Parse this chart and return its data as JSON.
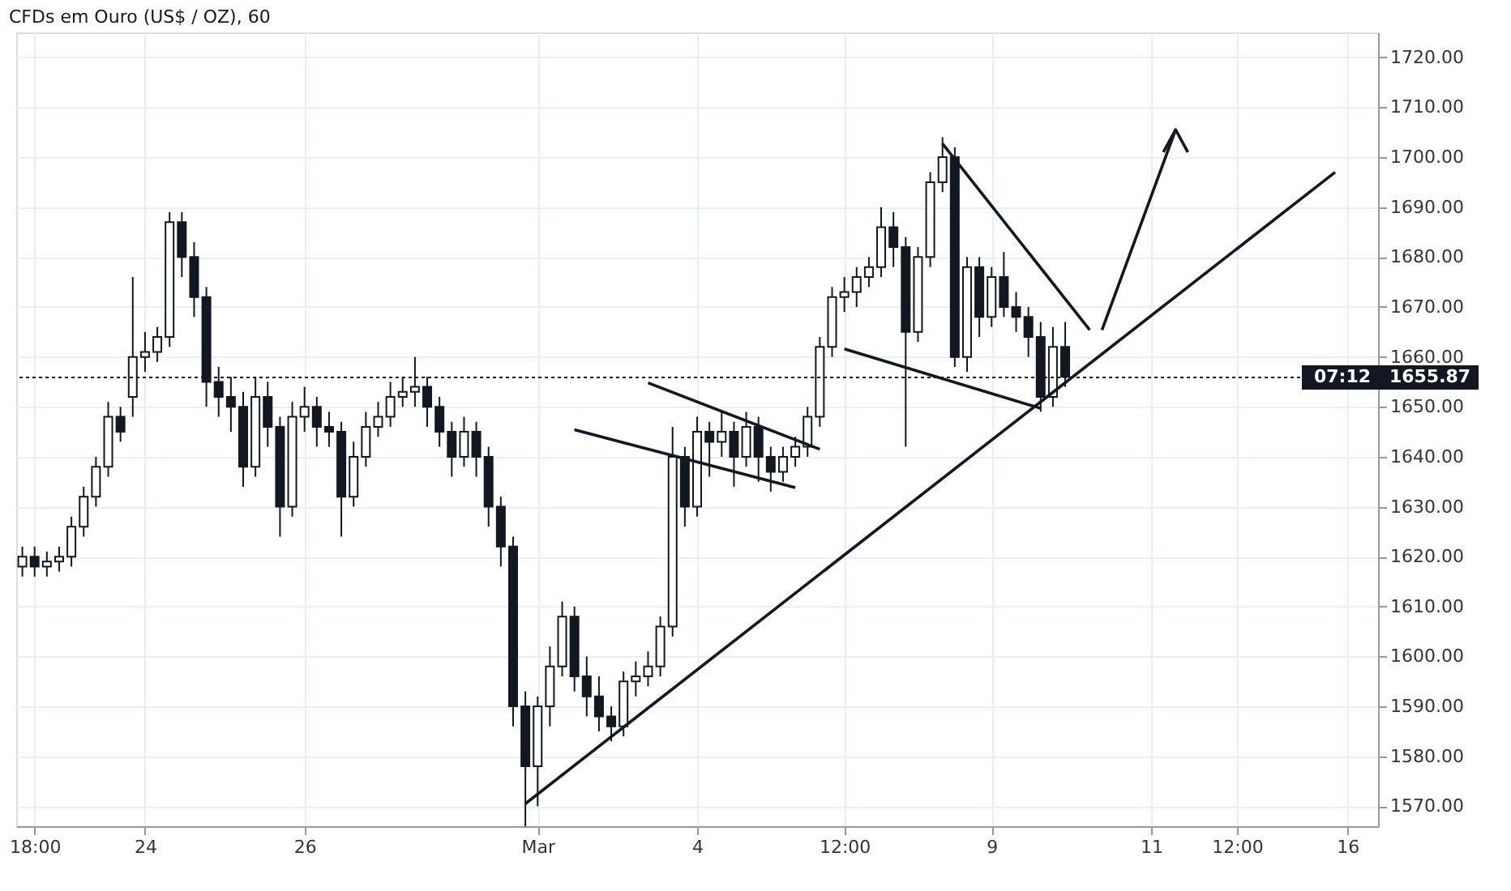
{
  "chart_data": {
    "type": "candlestick",
    "title": "CFDs em Ouro (US$ / OZ), 60",
    "color": "#131722",
    "categories": [
      null,
      "18:00",
      null,
      null,
      null,
      null,
      null,
      null,
      null,
      null,
      "24",
      null,
      null,
      null,
      null,
      null,
      null,
      null,
      null,
      null,
      null,
      null,
      null,
      "26",
      null,
      null,
      null,
      null,
      null,
      null,
      null,
      null,
      null,
      null,
      null,
      null,
      null,
      null,
      null,
      null,
      null,
      null,
      "Mar",
      null,
      null,
      null,
      null,
      null,
      null,
      null,
      null,
      null,
      null,
      null,
      null,
      "4",
      null,
      null,
      null,
      null,
      null,
      null,
      null,
      null,
      null,
      null,
      null,
      "12:00",
      null,
      null,
      null,
      null,
      null,
      null,
      null,
      null,
      null,
      null,
      null,
      "9",
      null,
      null,
      null,
      null,
      null,
      null,
      null,
      null,
      null,
      null,
      null,
      null,
      "11",
      null,
      null,
      null,
      null,
      null,
      null,
      "12:00",
      null,
      null,
      null,
      null,
      null,
      null,
      null,
      null,
      "16",
      null,
      null
    ],
    "ohlc": [
      [
        1618,
        1622,
        1616,
        1620
      ],
      [
        1620,
        1622,
        1616,
        1618
      ],
      [
        1618,
        1621,
        1616,
        1619
      ],
      [
        1619,
        1622,
        1617,
        1620
      ],
      [
        1620,
        1628,
        1618,
        1626
      ],
      [
        1626,
        1634,
        1624,
        1632
      ],
      [
        1632,
        1640,
        1630,
        1638
      ],
      [
        1638,
        1651,
        1636,
        1648
      ],
      [
        1648,
        1650,
        1643,
        1645
      ],
      [
        1652,
        1676,
        1648,
        1660
      ],
      [
        1660,
        1665,
        1657,
        1661
      ],
      [
        1661,
        1666,
        1659,
        1664
      ],
      [
        1664,
        1689,
        1662,
        1687
      ],
      [
        1687,
        1689,
        1676,
        1680
      ],
      [
        1680,
        1683,
        1668,
        1672
      ],
      [
        1672,
        1674,
        1650,
        1655
      ],
      [
        1655,
        1658,
        1648,
        1652
      ],
      [
        1652,
        1656,
        1645,
        1650
      ],
      [
        1650,
        1653,
        1634,
        1638
      ],
      [
        1638,
        1656,
        1636,
        1652
      ],
      [
        1652,
        1655,
        1642,
        1646
      ],
      [
        1646,
        1648,
        1624,
        1630
      ],
      [
        1630,
        1651,
        1628,
        1648
      ],
      [
        1648,
        1654,
        1645,
        1650
      ],
      [
        1650,
        1652,
        1642,
        1646
      ],
      [
        1646,
        1649,
        1642,
        1645
      ],
      [
        1645,
        1647,
        1624,
        1632
      ],
      [
        1632,
        1643,
        1630,
        1640
      ],
      [
        1640,
        1649,
        1638,
        1646
      ],
      [
        1646,
        1651,
        1644,
        1648
      ],
      [
        1648,
        1655,
        1646,
        1652
      ],
      [
        1652,
        1656,
        1650,
        1653
      ],
      [
        1653,
        1660,
        1650,
        1654
      ],
      [
        1654,
        1656,
        1646,
        1650
      ],
      [
        1650,
        1652,
        1642,
        1645
      ],
      [
        1645,
        1647,
        1636,
        1640
      ],
      [
        1640,
        1648,
        1638,
        1645
      ],
      [
        1645,
        1647,
        1636,
        1640
      ],
      [
        1640,
        1642,
        1626,
        1630
      ],
      [
        1630,
        1632,
        1618,
        1622
      ],
      [
        1622,
        1624,
        1586,
        1590
      ],
      [
        1590,
        1593,
        1566,
        1578
      ],
      [
        1578,
        1592,
        1570,
        1590
      ],
      [
        1590,
        1602,
        1586,
        1598
      ],
      [
        1598,
        1611,
        1596,
        1608
      ],
      [
        1608,
        1610,
        1593,
        1596
      ],
      [
        1596,
        1600,
        1588,
        1592
      ],
      [
        1592,
        1596,
        1585,
        1588
      ],
      [
        1588,
        1590,
        1583,
        1586
      ],
      [
        1586,
        1597,
        1584,
        1595
      ],
      [
        1595,
        1599,
        1592,
        1596
      ],
      [
        1596,
        1601,
        1594,
        1598
      ],
      [
        1598,
        1608,
        1596,
        1606
      ],
      [
        1606,
        1646,
        1604,
        1640
      ],
      [
        1640,
        1642,
        1626,
        1630
      ],
      [
        1630,
        1648,
        1628,
        1645
      ],
      [
        1645,
        1647,
        1636,
        1643
      ],
      [
        1643,
        1649,
        1640,
        1645
      ],
      [
        1645,
        1647,
        1634,
        1640
      ],
      [
        1640,
        1649,
        1638,
        1646
      ],
      [
        1646,
        1648,
        1635,
        1640
      ],
      [
        1640,
        1642,
        1633,
        1637
      ],
      [
        1637,
        1642,
        1635,
        1640
      ],
      [
        1640,
        1644,
        1638,
        1642
      ],
      [
        1642,
        1650,
        1640,
        1648
      ],
      [
        1648,
        1664,
        1646,
        1662
      ],
      [
        1662,
        1674,
        1660,
        1672
      ],
      [
        1672,
        1676,
        1669,
        1673
      ],
      [
        1673,
        1678,
        1670,
        1676
      ],
      [
        1676,
        1680,
        1674,
        1678
      ],
      [
        1678,
        1690,
        1676,
        1686
      ],
      [
        1686,
        1689,
        1678,
        1682
      ],
      [
        1682,
        1684,
        1642,
        1665
      ],
      [
        1665,
        1682,
        1663,
        1680
      ],
      [
        1680,
        1697,
        1678,
        1695
      ],
      [
        1695,
        1704,
        1693,
        1700
      ],
      [
        1700,
        1702,
        1658,
        1660
      ],
      [
        1660,
        1680,
        1657,
        1678
      ],
      [
        1678,
        1680,
        1664,
        1668
      ],
      [
        1668,
        1678,
        1666,
        1676
      ],
      [
        1676,
        1681,
        1668,
        1670
      ],
      [
        1670,
        1673,
        1665,
        1668
      ],
      [
        1668,
        1670,
        1660,
        1664
      ],
      [
        1664,
        1667,
        1649,
        1652
      ],
      [
        1652,
        1666,
        1650,
        1662
      ],
      [
        1662,
        1667,
        1654,
        1656
      ],
      null,
      null,
      null,
      null,
      null,
      null,
      null,
      null,
      null,
      null,
      null,
      null,
      null,
      null,
      null,
      null,
      null,
      null,
      null,
      null,
      null,
      null,
      null,
      null,
      null
    ],
    "series": [
      {
        "type": "line",
        "color": "#131722",
        "values": [
          null,
          null,
          null,
          null,
          null,
          null,
          null,
          null,
          null,
          null,
          null,
          null,
          null,
          null,
          null,
          null,
          null,
          null,
          null,
          null,
          null,
          null,
          null,
          null,
          null,
          null,
          null,
          null,
          null,
          null,
          null,
          null,
          null,
          null,
          null,
          null,
          null,
          null,
          null,
          null,
          null,
          1570.5,
          null,
          null,
          null,
          null,
          null,
          null,
          null,
          null,
          null,
          null,
          null,
          null,
          null,
          null,
          null,
          null,
          null,
          null,
          null,
          null,
          null,
          null,
          null,
          null,
          null,
          null,
          null,
          null,
          null,
          null,
          null,
          null,
          null,
          null,
          null,
          null,
          null,
          null,
          null,
          null,
          null,
          null,
          null,
          null,
          null,
          null,
          null,
          null,
          null,
          null,
          null,
          null,
          null,
          null,
          null,
          null,
          null,
          null,
          null,
          null,
          null,
          null,
          null,
          null,
          null,
          1697,
          null,
          null,
          null
        ]
      },
      {
        "type": "line",
        "color": "#131722",
        "values": [
          null,
          null,
          null,
          null,
          null,
          null,
          null,
          null,
          null,
          null,
          null,
          null,
          null,
          null,
          null,
          null,
          null,
          null,
          null,
          null,
          null,
          null,
          null,
          null,
          null,
          null,
          null,
          null,
          null,
          null,
          null,
          null,
          null,
          null,
          null,
          null,
          null,
          null,
          null,
          null,
          null,
          null,
          null,
          null,
          null,
          null,
          null,
          null,
          null,
          null,
          null,
          1654.8,
          null,
          null,
          null,
          null,
          null,
          null,
          null,
          null,
          null,
          null,
          null,
          null,
          null,
          1641.5,
          null,
          null,
          null,
          null,
          null,
          null,
          null,
          null,
          null,
          null,
          null,
          null,
          null,
          null,
          null,
          null,
          null,
          null,
          null,
          null,
          null,
          null,
          null,
          null,
          null,
          null,
          null,
          null,
          null,
          null,
          null,
          null,
          null,
          null,
          null,
          null,
          null,
          null,
          null,
          null,
          null,
          null,
          null,
          null,
          null
        ]
      },
      {
        "type": "line",
        "color": "#131722",
        "values": [
          null,
          null,
          null,
          null,
          null,
          null,
          null,
          null,
          null,
          null,
          null,
          null,
          null,
          null,
          null,
          null,
          null,
          null,
          null,
          null,
          null,
          null,
          null,
          null,
          null,
          null,
          null,
          null,
          null,
          null,
          null,
          null,
          null,
          null,
          null,
          null,
          null,
          null,
          null,
          null,
          null,
          null,
          null,
          null,
          null,
          1645.4,
          null,
          null,
          null,
          null,
          null,
          null,
          null,
          null,
          null,
          null,
          null,
          null,
          null,
          null,
          null,
          null,
          null,
          1633.8,
          null,
          null,
          null,
          null,
          null,
          null,
          null,
          null,
          null,
          null,
          null,
          null,
          null,
          null,
          null,
          null,
          null,
          null,
          null,
          null,
          null,
          null,
          null,
          null,
          null,
          null,
          null,
          null,
          null,
          null,
          null,
          null,
          null,
          null,
          null,
          null,
          null,
          null,
          null,
          null,
          null,
          null,
          null,
          null,
          null,
          null,
          null
        ]
      },
      {
        "type": "line",
        "color": "#131722",
        "values": [
          null,
          null,
          null,
          null,
          null,
          null,
          null,
          null,
          null,
          null,
          null,
          null,
          null,
          null,
          null,
          null,
          null,
          null,
          null,
          null,
          null,
          null,
          null,
          null,
          null,
          null,
          null,
          null,
          null,
          null,
          null,
          null,
          null,
          null,
          null,
          null,
          null,
          null,
          null,
          null,
          null,
          null,
          null,
          null,
          null,
          null,
          null,
          null,
          null,
          null,
          null,
          null,
          null,
          null,
          null,
          null,
          null,
          null,
          null,
          null,
          null,
          null,
          null,
          null,
          null,
          null,
          null,
          null,
          null,
          null,
          null,
          null,
          null,
          null,
          null,
          1702.7,
          null,
          null,
          null,
          null,
          null,
          null,
          null,
          null,
          null,
          null,
          null,
          1665.4,
          null,
          null,
          null,
          null,
          null,
          null,
          null,
          null,
          null,
          null,
          null,
          null,
          null,
          null,
          null,
          null,
          null,
          null,
          null,
          null,
          null,
          null,
          null
        ]
      },
      {
        "type": "line",
        "color": "#131722",
        "values": [
          null,
          null,
          null,
          null,
          null,
          null,
          null,
          null,
          null,
          null,
          null,
          null,
          null,
          null,
          null,
          null,
          null,
          null,
          null,
          null,
          null,
          null,
          null,
          null,
          null,
          null,
          null,
          null,
          null,
          null,
          null,
          null,
          null,
          null,
          null,
          null,
          null,
          null,
          null,
          null,
          null,
          null,
          null,
          null,
          null,
          null,
          null,
          null,
          null,
          null,
          null,
          null,
          null,
          null,
          null,
          null,
          null,
          null,
          null,
          null,
          null,
          null,
          null,
          null,
          null,
          null,
          null,
          1661.6,
          null,
          null,
          null,
          null,
          null,
          null,
          null,
          null,
          null,
          null,
          null,
          null,
          null,
          null,
          null,
          1649.7,
          null,
          null,
          null,
          null,
          null,
          null,
          null,
          null,
          null,
          null,
          null,
          null,
          null,
          null,
          null,
          null,
          null,
          null,
          null,
          null,
          null,
          null,
          null,
          null,
          null,
          null,
          null
        ]
      },
      {
        "type": "line",
        "color": "#131722",
        "values": [
          null,
          null,
          null,
          null,
          null,
          null,
          null,
          null,
          null,
          null,
          null,
          null,
          null,
          null,
          null,
          null,
          null,
          null,
          null,
          null,
          null,
          null,
          null,
          null,
          null,
          null,
          null,
          null,
          null,
          null,
          null,
          null,
          null,
          null,
          null,
          null,
          null,
          null,
          null,
          null,
          null,
          null,
          null,
          null,
          null,
          null,
          null,
          null,
          null,
          null,
          null,
          null,
          null,
          null,
          null,
          null,
          null,
          null,
          null,
          null,
          null,
          null,
          null,
          null,
          null,
          null,
          null,
          null,
          null,
          null,
          null,
          null,
          null,
          null,
          null,
          null,
          null,
          null,
          null,
          null,
          null,
          null,
          null,
          null,
          null,
          null,
          null,
          null,
          1665.4,
          null,
          null,
          null,
          null,
          null,
          1705.5,
          null,
          null,
          null,
          null,
          null,
          null,
          null,
          null,
          null,
          null,
          null,
          null,
          null,
          null,
          null,
          null
        ]
      },
      {
        "type": "line",
        "color": "#131722",
        "values": [
          null,
          null,
          null,
          null,
          null,
          null,
          null,
          null,
          null,
          null,
          null,
          null,
          null,
          null,
          null,
          null,
          null,
          null,
          null,
          null,
          null,
          null,
          null,
          null,
          null,
          null,
          null,
          null,
          null,
          null,
          null,
          null,
          null,
          null,
          null,
          null,
          null,
          null,
          null,
          null,
          null,
          null,
          null,
          null,
          null,
          null,
          null,
          null,
          null,
          null,
          null,
          null,
          null,
          null,
          null,
          null,
          null,
          null,
          null,
          null,
          null,
          null,
          null,
          null,
          null,
          null,
          null,
          null,
          null,
          null,
          null,
          null,
          null,
          null,
          null,
          null,
          null,
          null,
          null,
          null,
          null,
          null,
          null,
          null,
          null,
          null,
          null,
          null,
          null,
          null,
          null,
          null,
          null,
          1701,
          1705.5,
          1701,
          null,
          null,
          null,
          null,
          null,
          null,
          null,
          null,
          null,
          null,
          null,
          null,
          null,
          null,
          null
        ]
      }
    ],
    "ylim": [
      1566,
      1725
    ],
    "yticks": [
      {
        "value": 1570,
        "label": "1570.00"
      },
      {
        "value": 1580,
        "label": "1580.00"
      },
      {
        "value": 1590,
        "label": "1590.00"
      },
      {
        "value": 1600,
        "label": "1600.00"
      },
      {
        "value": 1610,
        "label": "1610.00"
      },
      {
        "value": 1620,
        "label": "1620.00"
      },
      {
        "value": 1630,
        "label": "1630.00"
      },
      {
        "value": 1640,
        "label": "1640.00"
      },
      {
        "value": 1650,
        "label": "1650.00"
      },
      {
        "value": 1660,
        "label": "1660.00"
      },
      {
        "value": 1670,
        "label": "1670.00"
      },
      {
        "value": 1680,
        "label": "1680.00"
      },
      {
        "value": 1690,
        "label": "1690.00"
      },
      {
        "value": 1700,
        "label": "1700.00"
      },
      {
        "value": 1710,
        "label": "1710.00"
      },
      {
        "value": 1720,
        "label": "1720.00"
      }
    ],
    "grid": true,
    "ref_lines": [
      {
        "axis": "y",
        "value": 1655.87,
        "label": "1655.87",
        "line_style": "dotted",
        "color": "#131722"
      }
    ],
    "annotations": [
      "07:12"
    ]
  }
}
